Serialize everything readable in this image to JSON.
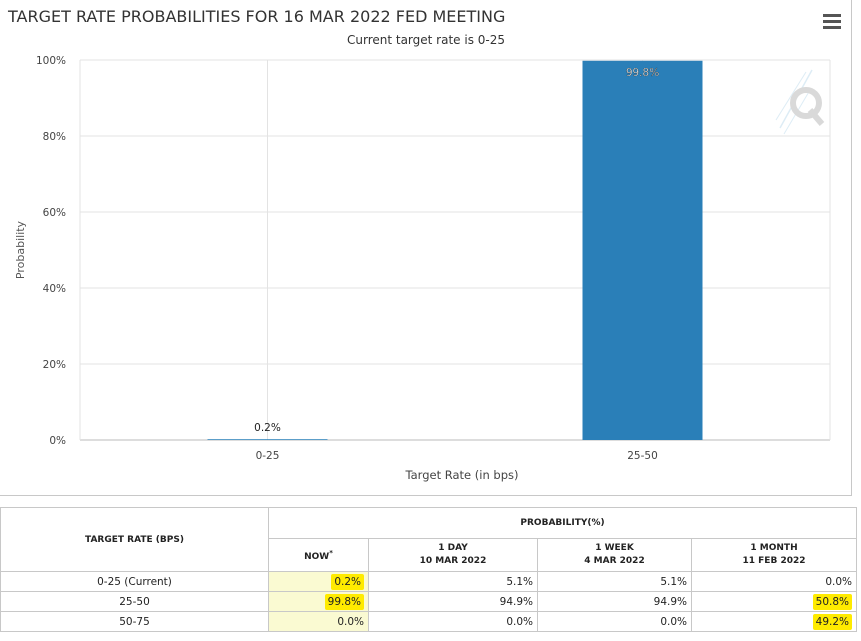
{
  "chart_data": {
    "type": "bar",
    "title": "TARGET RATE PROBABILITIES FOR 16 MAR 2022 FED MEETING",
    "subtitle": "Current target rate is 0-25",
    "categories": [
      "0-25",
      "25-50"
    ],
    "values": [
      0.2,
      99.8
    ],
    "data_labels": [
      "0.2%",
      "99.8%"
    ],
    "xlabel": "Target Rate (in bps)",
    "ylabel": "Probability",
    "ylim": [
      0,
      100
    ],
    "yticks": [
      0,
      20,
      40,
      60,
      80,
      100
    ],
    "ytick_labels": [
      "0%",
      "20%",
      "40%",
      "60%",
      "80%",
      "100%"
    ],
    "grid": true,
    "bar_color": "#2a7fb8"
  },
  "table": {
    "target_header": "TARGET RATE (BPS)",
    "probability_header": "PROBABILITY(%)",
    "columns": [
      {
        "line1": "NOW",
        "line2": "",
        "superscript": "*"
      },
      {
        "line1": "1 DAY",
        "line2": "10 MAR 2022"
      },
      {
        "line1": "1 WEEK",
        "line2": "4 MAR 2022"
      },
      {
        "line1": "1 MONTH",
        "line2": "11 FEB 2022"
      }
    ],
    "rows": [
      {
        "rate": "0-25 (Current)",
        "values": [
          "0.2%",
          "5.1%",
          "5.1%",
          "0.0%"
        ]
      },
      {
        "rate": "25-50",
        "values": [
          "99.8%",
          "94.9%",
          "94.9%",
          "50.8%"
        ]
      },
      {
        "rate": "50-75",
        "values": [
          "0.0%",
          "0.0%",
          "0.0%",
          "49.2%"
        ]
      }
    ],
    "highlight_color": "#ffeb00"
  }
}
